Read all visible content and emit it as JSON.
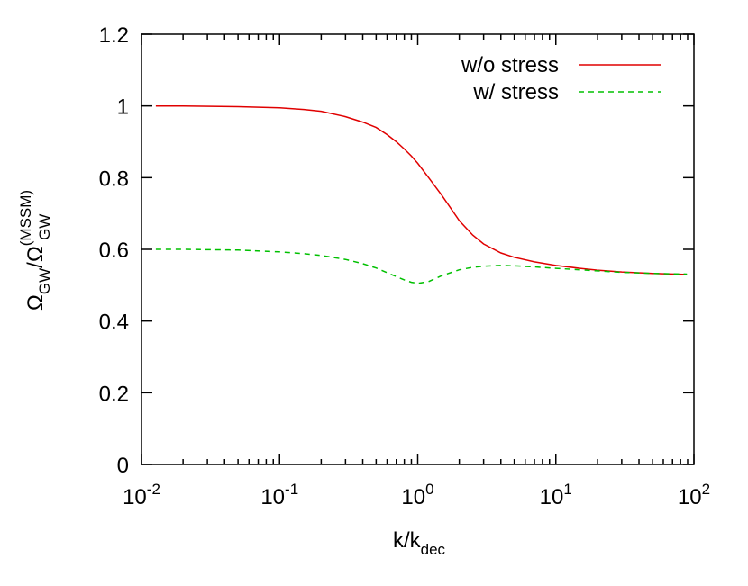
{
  "chart_data": {
    "type": "line",
    "xscale": "log",
    "xlim": [
      0.01,
      100
    ],
    "ylim": [
      0,
      1.2
    ],
    "grid": false,
    "legend_position": "top-right",
    "xticks": [
      {
        "value": 0.01,
        "base": "10",
        "exp": "-2"
      },
      {
        "value": 0.1,
        "base": "10",
        "exp": "-1"
      },
      {
        "value": 1,
        "base": "10",
        "exp": "0"
      },
      {
        "value": 10,
        "base": "10",
        "exp": "1"
      },
      {
        "value": 100,
        "base": "10",
        "exp": "2"
      }
    ],
    "yticks": [
      {
        "value": 0,
        "label": "0"
      },
      {
        "value": 0.2,
        "label": "0.2"
      },
      {
        "value": 0.4,
        "label": "0.4"
      },
      {
        "value": 0.6,
        "label": "0.6"
      },
      {
        "value": 0.8,
        "label": "0.8"
      },
      {
        "value": 1.0,
        "label": "1"
      },
      {
        "value": 1.2,
        "label": "1.2"
      }
    ],
    "xlabel": {
      "main": "k/k",
      "sub": "dec"
    },
    "ylabel": {
      "omega": "Ω",
      "sub1": "GW",
      "slash": "/Ω",
      "sup2": "(MSSM)",
      "sub2": "GW"
    },
    "series": [
      {
        "name": "w/o stress",
        "color": "#e00000",
        "dash": "solid",
        "x": [
          0.0127,
          0.02,
          0.05,
          0.1,
          0.15,
          0.2,
          0.3,
          0.4,
          0.5,
          0.6,
          0.7,
          0.8,
          0.9,
          1.0,
          1.2,
          1.5,
          2.0,
          2.5,
          3.0,
          4.0,
          5.0,
          7.0,
          10,
          15,
          20,
          30,
          50,
          89
        ],
        "y": [
          1.0,
          1.0,
          0.998,
          0.995,
          0.99,
          0.985,
          0.97,
          0.955,
          0.94,
          0.92,
          0.9,
          0.88,
          0.86,
          0.84,
          0.8,
          0.75,
          0.68,
          0.64,
          0.615,
          0.59,
          0.578,
          0.565,
          0.555,
          0.547,
          0.542,
          0.537,
          0.533,
          0.53
        ]
      },
      {
        "name": "w/ stress",
        "color": "#00c000",
        "dash": "dashed",
        "x": [
          0.0127,
          0.02,
          0.05,
          0.1,
          0.15,
          0.2,
          0.3,
          0.4,
          0.5,
          0.6,
          0.7,
          0.8,
          0.9,
          1.0,
          1.2,
          1.5,
          2.0,
          2.5,
          3.0,
          4.0,
          5.0,
          7.0,
          10,
          15,
          20,
          30,
          50,
          89
        ],
        "y": [
          0.6,
          0.6,
          0.598,
          0.593,
          0.588,
          0.583,
          0.572,
          0.56,
          0.548,
          0.535,
          0.524,
          0.515,
          0.508,
          0.505,
          0.51,
          0.527,
          0.543,
          0.55,
          0.553,
          0.555,
          0.554,
          0.551,
          0.547,
          0.543,
          0.54,
          0.536,
          0.533,
          0.531
        ]
      }
    ]
  }
}
